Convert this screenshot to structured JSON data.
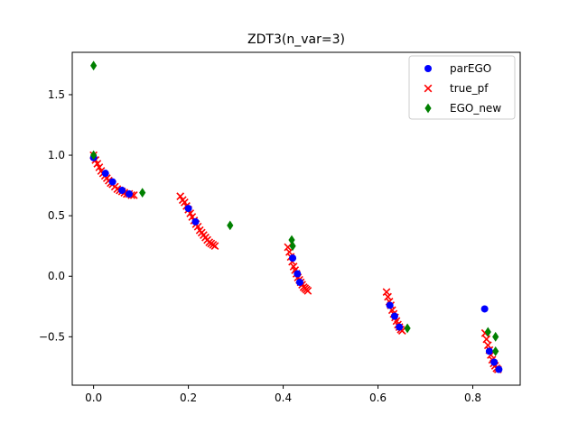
{
  "chart_data": {
    "type": "scatter",
    "title": "ZDT3(n_var=3)",
    "xlabel": "",
    "ylabel": "",
    "xlim": [
      -0.045,
      0.9
    ],
    "ylim": [
      -0.9,
      1.85
    ],
    "xticks": [
      0.0,
      0.2,
      0.4,
      0.6,
      0.8
    ],
    "xtick_labels": [
      "0.0",
      "0.2",
      "0.4",
      "0.6",
      "0.8"
    ],
    "yticks": [
      -0.5,
      0.0,
      0.5,
      1.0,
      1.5
    ],
    "ytick_labels": [
      "−0.5",
      "0.0",
      "0.5",
      "1.0",
      "1.5"
    ],
    "grid": false,
    "legend_position": "top-right",
    "series": [
      {
        "name": "parEGO",
        "marker": "circle",
        "color": "#0000ff",
        "points": [
          [
            0.0,
            0.98
          ],
          [
            0.025,
            0.85
          ],
          [
            0.04,
            0.78
          ],
          [
            0.06,
            0.71
          ],
          [
            0.075,
            0.68
          ],
          [
            0.2,
            0.56
          ],
          [
            0.215,
            0.45
          ],
          [
            0.42,
            0.15
          ],
          [
            0.43,
            0.02
          ],
          [
            0.435,
            -0.05
          ],
          [
            0.625,
            -0.24
          ],
          [
            0.635,
            -0.33
          ],
          [
            0.645,
            -0.42
          ],
          [
            0.825,
            -0.27
          ],
          [
            0.835,
            -0.62
          ],
          [
            0.845,
            -0.71
          ],
          [
            0.855,
            -0.77
          ]
        ]
      },
      {
        "name": "true_pf",
        "marker": "x",
        "color": "#ff0000",
        "points": [
          [
            0.0,
            1.0
          ],
          [
            0.004,
            0.96
          ],
          [
            0.008,
            0.93
          ],
          [
            0.012,
            0.9
          ],
          [
            0.016,
            0.87
          ],
          [
            0.02,
            0.85
          ],
          [
            0.024,
            0.83
          ],
          [
            0.028,
            0.81
          ],
          [
            0.032,
            0.79
          ],
          [
            0.036,
            0.77
          ],
          [
            0.04,
            0.76
          ],
          [
            0.045,
            0.74
          ],
          [
            0.05,
            0.72
          ],
          [
            0.055,
            0.71
          ],
          [
            0.06,
            0.7
          ],
          [
            0.065,
            0.69
          ],
          [
            0.07,
            0.68
          ],
          [
            0.075,
            0.68
          ],
          [
            0.08,
            0.67
          ],
          [
            0.085,
            0.67
          ],
          [
            0.183,
            0.66
          ],
          [
            0.188,
            0.63
          ],
          [
            0.192,
            0.61
          ],
          [
            0.196,
            0.58
          ],
          [
            0.2,
            0.55
          ],
          [
            0.204,
            0.52
          ],
          [
            0.208,
            0.49
          ],
          [
            0.212,
            0.46
          ],
          [
            0.216,
            0.43
          ],
          [
            0.22,
            0.41
          ],
          [
            0.224,
            0.38
          ],
          [
            0.228,
            0.36
          ],
          [
            0.232,
            0.34
          ],
          [
            0.236,
            0.32
          ],
          [
            0.24,
            0.3
          ],
          [
            0.244,
            0.28
          ],
          [
            0.248,
            0.27
          ],
          [
            0.252,
            0.26
          ],
          [
            0.256,
            0.25
          ],
          [
            0.41,
            0.24
          ],
          [
            0.413,
            0.2
          ],
          [
            0.416,
            0.16
          ],
          [
            0.419,
            0.12
          ],
          [
            0.422,
            0.08
          ],
          [
            0.425,
            0.05
          ],
          [
            0.428,
            0.02
          ],
          [
            0.431,
            -0.01
          ],
          [
            0.434,
            -0.03
          ],
          [
            0.437,
            -0.05
          ],
          [
            0.44,
            -0.07
          ],
          [
            0.443,
            -0.09
          ],
          [
            0.446,
            -0.1
          ],
          [
            0.449,
            -0.11
          ],
          [
            0.452,
            -0.12
          ],
          [
            0.618,
            -0.13
          ],
          [
            0.621,
            -0.17
          ],
          [
            0.624,
            -0.21
          ],
          [
            0.627,
            -0.24
          ],
          [
            0.63,
            -0.28
          ],
          [
            0.633,
            -0.31
          ],
          [
            0.636,
            -0.34
          ],
          [
            0.639,
            -0.37
          ],
          [
            0.642,
            -0.4
          ],
          [
            0.645,
            -0.42
          ],
          [
            0.648,
            -0.44
          ],
          [
            0.651,
            -0.45
          ],
          [
            0.826,
            -0.47
          ],
          [
            0.829,
            -0.52
          ],
          [
            0.832,
            -0.57
          ],
          [
            0.835,
            -0.61
          ],
          [
            0.838,
            -0.65
          ],
          [
            0.841,
            -0.69
          ],
          [
            0.844,
            -0.72
          ],
          [
            0.847,
            -0.74
          ],
          [
            0.85,
            -0.76
          ],
          [
            0.853,
            -0.77
          ]
        ]
      },
      {
        "name": "EGO_new",
        "marker": "diamond",
        "color": "#008000",
        "points": [
          [
            0.0,
            1.74
          ],
          [
            0.0,
            1.0
          ],
          [
            0.103,
            0.69
          ],
          [
            0.288,
            0.42
          ],
          [
            0.418,
            0.3
          ],
          [
            0.42,
            0.25
          ],
          [
            0.662,
            -0.43
          ],
          [
            0.832,
            -0.46
          ],
          [
            0.848,
            -0.5
          ],
          [
            0.848,
            -0.62
          ]
        ]
      }
    ]
  }
}
